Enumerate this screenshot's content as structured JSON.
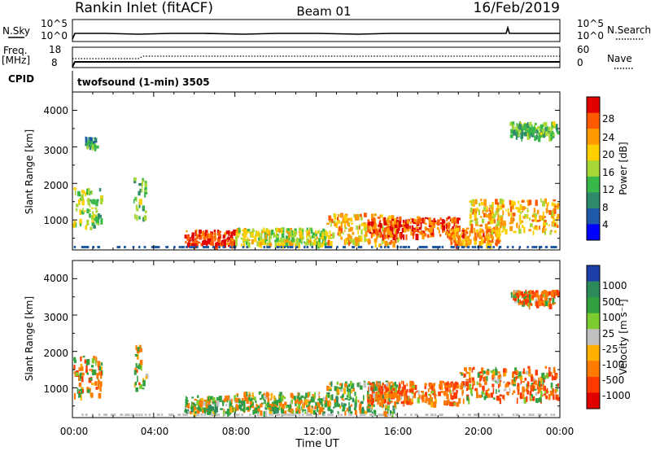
{
  "header": {
    "station": "Rankin Inlet (fitACF)",
    "beam": "Beam 01",
    "date": "16/Feb/2019"
  },
  "top_strip": {
    "nsky_label": "N.Sky",
    "nsearch_label": "N.Search",
    "freq_label_line1": "Freq.",
    "freq_label_line2": "[MHz]",
    "nave_label": "Nave",
    "cpid_label": "CPID",
    "cpid_text": "twofsound (1-min) 3505",
    "nsky_ticks": [
      "10^5",
      "10^0"
    ],
    "nsearch_ticks": [
      "10^5",
      "10^0"
    ],
    "freq_ticks": [
      "18",
      "8"
    ],
    "nave_ticks": [
      "60",
      "0"
    ]
  },
  "axes": {
    "x_title": "Time UT",
    "x_ticks": [
      "00:00",
      "04:00",
      "08:00",
      "12:00",
      "16:00",
      "20:00",
      "00:00"
    ],
    "y_title": "Slant Range [km]",
    "y_ticks": [
      "4000",
      "3000",
      "2000",
      "1000"
    ]
  },
  "power_scale": {
    "title": "Power [dB]",
    "labels": [
      "28",
      "24",
      "20",
      "16",
      "12",
      "8",
      "4"
    ],
    "colors": [
      "#e00000",
      "#ff5a00",
      "#ff9a00",
      "#ffd000",
      "#a8d838",
      "#38b848",
      "#2e8a6a",
      "#1f5aa8",
      "#0000ff"
    ]
  },
  "velocity_scale": {
    "title": "Velocity [m s⁻¹]",
    "labels": [
      "1000",
      "500",
      "100",
      "25",
      "-25",
      "-100",
      "-500",
      "-1000"
    ],
    "colors": [
      "#1f3fa8",
      "#2d8a5a",
      "#30a040",
      "#7ccc30",
      "#c0c0c0",
      "#ffb000",
      "#ff7a00",
      "#ff3a00",
      "#e00000"
    ]
  },
  "chart_data": [
    {
      "type": "heatmap",
      "title": "Power [dB]",
      "xlabel": "Time UT",
      "ylabel": "Slant Range [km]",
      "xlim": [
        0,
        24
      ],
      "ylim": [
        180,
        4500
      ],
      "clim": [
        0,
        30
      ],
      "regions": [
        {
          "t_start": 0.0,
          "t_end": 1.4,
          "r_low": 800,
          "r_high": 1900,
          "value": 14
        },
        {
          "t_start": 0.6,
          "t_end": 1.2,
          "r_low": 3000,
          "r_high": 3300,
          "value": 10
        },
        {
          "t_start": 3.0,
          "t_end": 3.6,
          "r_low": 1000,
          "r_high": 2200,
          "value": 12
        },
        {
          "t_start": 5.5,
          "t_end": 8.0,
          "r_low": 350,
          "r_high": 750,
          "value": 26
        },
        {
          "t_start": 8.0,
          "t_end": 12.5,
          "r_low": 350,
          "r_high": 800,
          "value": 16
        },
        {
          "t_start": 12.5,
          "t_end": 16.0,
          "r_low": 350,
          "r_high": 1200,
          "value": 20
        },
        {
          "t_start": 14.5,
          "t_end": 19.0,
          "r_low": 600,
          "r_high": 1100,
          "value": 26
        },
        {
          "t_start": 18.5,
          "t_end": 21.0,
          "r_low": 350,
          "r_high": 800,
          "value": 22
        },
        {
          "t_start": 19.5,
          "t_end": 24.0,
          "r_low": 700,
          "r_high": 1600,
          "value": 20
        },
        {
          "t_start": 21.5,
          "t_end": 24.0,
          "r_low": 3300,
          "r_high": 3700,
          "value": 12
        }
      ]
    },
    {
      "type": "heatmap",
      "title": "Velocity [m s⁻¹]",
      "xlabel": "Time UT",
      "ylabel": "Slant Range [km]",
      "xlim": [
        0,
        24
      ],
      "ylim": [
        180,
        4500
      ],
      "clim": [
        -1000,
        1000
      ],
      "regions": [
        {
          "t_start": 0.0,
          "t_end": 1.4,
          "r_low": 800,
          "r_high": 1900,
          "value": -150
        },
        {
          "t_start": 3.0,
          "t_end": 3.6,
          "r_low": 1000,
          "r_high": 2200,
          "value": -100
        },
        {
          "t_start": 5.5,
          "t_end": 8.0,
          "r_low": 350,
          "r_high": 800,
          "value": 100
        },
        {
          "t_start": 8.0,
          "t_end": 12.5,
          "r_low": 350,
          "r_high": 900,
          "value": 60
        },
        {
          "t_start": 12.5,
          "t_end": 16.0,
          "r_low": 350,
          "r_high": 1200,
          "value": 200
        },
        {
          "t_start": 14.5,
          "t_end": 19.0,
          "r_low": 600,
          "r_high": 1200,
          "value": -400
        },
        {
          "t_start": 19.0,
          "t_end": 24.0,
          "r_low": 700,
          "r_high": 1600,
          "value": -300
        },
        {
          "t_start": 21.5,
          "t_end": 24.0,
          "r_low": 3300,
          "r_high": 3700,
          "value": -200
        }
      ]
    }
  ]
}
